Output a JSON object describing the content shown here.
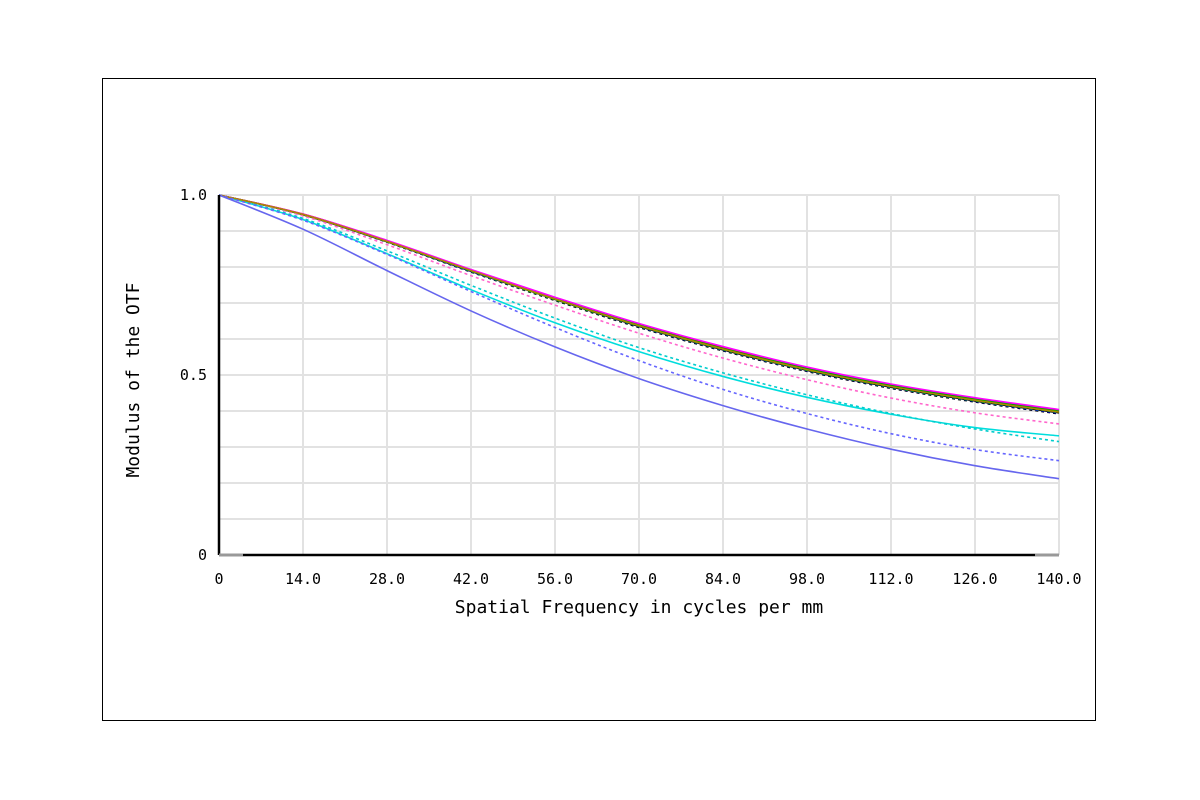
{
  "chart_data": {
    "type": "line",
    "title": "",
    "xlabel": "Spatial Frequency in cycles per mm",
    "ylabel": "Modulus of the OTF",
    "xlim": [
      0,
      140
    ],
    "ylim": [
      0,
      1
    ],
    "grid": true,
    "legend": "none",
    "x_ticks": [
      "0",
      "14.0",
      "28.0",
      "42.0",
      "56.0",
      "70.0",
      "84.0",
      "98.0",
      "112.0",
      "126.0",
      "140.0"
    ],
    "y_ticks": [
      {
        "value": 0,
        "label": "0"
      },
      {
        "value": 0.5,
        "label": "0.5"
      },
      {
        "value": 1,
        "label": "1.0"
      }
    ],
    "x": [
      0,
      14,
      28,
      42,
      56,
      70,
      84,
      98,
      112,
      126,
      140
    ],
    "series": [
      {
        "color": "#000000",
        "dash": "solid",
        "values": [
          1.0,
          0.945,
          0.87,
          0.788,
          0.71,
          0.635,
          0.57,
          0.513,
          0.466,
          0.428,
          0.395
        ]
      },
      {
        "color": "#000000",
        "dash": "dotted",
        "values": [
          1.0,
          0.945,
          0.869,
          0.786,
          0.707,
          0.632,
          0.567,
          0.51,
          0.463,
          0.425,
          0.392
        ]
      },
      {
        "color": "#0000ff",
        "dash": "solid",
        "values": [
          1.0,
          0.946,
          0.871,
          0.789,
          0.711,
          0.637,
          0.572,
          0.515,
          0.468,
          0.43,
          0.398
        ]
      },
      {
        "color": "#0000ff",
        "dash": "dotted",
        "values": [
          1.0,
          0.945,
          0.87,
          0.787,
          0.709,
          0.634,
          0.569,
          0.512,
          0.465,
          0.427,
          0.394
        ]
      },
      {
        "color": "#ff0000",
        "dash": "solid",
        "values": [
          1.0,
          0.947,
          0.873,
          0.792,
          0.714,
          0.64,
          0.576,
          0.52,
          0.473,
          0.435,
          0.402
        ]
      },
      {
        "color": "#ff0000",
        "dash": "dotted",
        "values": [
          1.0,
          0.946,
          0.872,
          0.79,
          0.712,
          0.638,
          0.574,
          0.517,
          0.47,
          0.432,
          0.399
        ]
      },
      {
        "color": "#00a000",
        "dash": "solid",
        "values": [
          1.0,
          0.946,
          0.872,
          0.791,
          0.713,
          0.639,
          0.574,
          0.518,
          0.471,
          0.433,
          0.4
        ]
      },
      {
        "color": "#00a000",
        "dash": "dotted",
        "values": [
          1.0,
          0.945,
          0.87,
          0.788,
          0.709,
          0.635,
          0.57,
          0.513,
          0.466,
          0.428,
          0.396
        ]
      },
      {
        "color": "#ff00ff",
        "dash": "solid",
        "values": [
          1.0,
          0.947,
          0.874,
          0.793,
          0.716,
          0.643,
          0.579,
          0.522,
          0.475,
          0.437,
          0.404
        ]
      },
      {
        "color": "#ff66cc",
        "dash": "dotted",
        "values": [
          1.0,
          0.942,
          0.862,
          0.776,
          0.694,
          0.616,
          0.547,
          0.487,
          0.436,
          0.395,
          0.364
        ]
      },
      {
        "color": "#00dddd",
        "dash": "solid",
        "values": [
          1.0,
          0.932,
          0.837,
          0.737,
          0.645,
          0.565,
          0.496,
          0.438,
          0.391,
          0.354,
          0.331
        ]
      },
      {
        "color": "#00cccc",
        "dash": "dotted",
        "values": [
          1.0,
          0.935,
          0.845,
          0.749,
          0.658,
          0.576,
          0.506,
          0.445,
          0.393,
          0.35,
          0.315
        ]
      },
      {
        "color": "#aa8800",
        "dash": "solid",
        "values": [
          1.0,
          0.946,
          0.871,
          0.79,
          0.711,
          0.637,
          0.572,
          0.515,
          0.468,
          0.43,
          0.397
        ]
      },
      {
        "color": "#6666ff",
        "dash": "dotted",
        "values": [
          1.0,
          0.93,
          0.835,
          0.732,
          0.632,
          0.54,
          0.46,
          0.393,
          0.337,
          0.293,
          0.262
        ]
      },
      {
        "color": "#6666ee",
        "dash": "solid",
        "values": [
          1.0,
          0.905,
          0.79,
          0.678,
          0.578,
          0.49,
          0.415,
          0.35,
          0.294,
          0.248,
          0.212
        ]
      }
    ]
  }
}
